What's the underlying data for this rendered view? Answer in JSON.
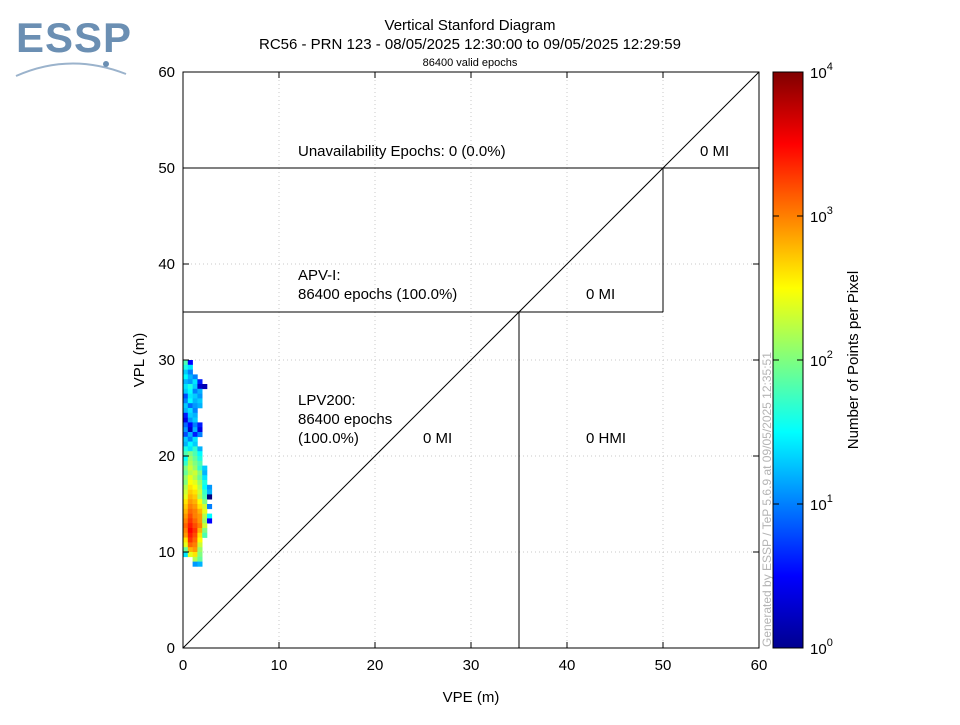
{
  "logo": {
    "text": "ESSP"
  },
  "header": {
    "title": "Vertical Stanford Diagram",
    "subtitle": "RC56 - PRN 123 - 08/05/2025 12:30:00 to 09/05/2025 12:29:59",
    "epochs_line": "86400 valid epochs"
  },
  "watermark": "Generated by ESSP / TeP 5.6.9 at 09/05/2025 12:35:51",
  "chart_data": {
    "type": "heatmap",
    "title": "Vertical Stanford Diagram",
    "xlabel": "VPE (m)",
    "ylabel": "VPL (m)",
    "xlim": [
      0,
      60
    ],
    "ylim": [
      0,
      60
    ],
    "x_ticks": [
      "0",
      "10",
      "20",
      "30",
      "40",
      "50",
      "60"
    ],
    "y_ticks": [
      "0",
      "10",
      "20",
      "30",
      "40",
      "50",
      "60"
    ],
    "grid": true,
    "cell_size_m": 0.5,
    "colorbar": {
      "label": "Number of Points per Pixel",
      "scale": "log",
      "range": [
        1,
        10000
      ],
      "ticks": [
        {
          "base": "10",
          "exp": "0"
        },
        {
          "base": "10",
          "exp": "1"
        },
        {
          "base": "10",
          "exp": "2"
        },
        {
          "base": "10",
          "exp": "3"
        },
        {
          "base": "10",
          "exp": "4"
        }
      ]
    },
    "alert_limits": [
      {
        "name": "APV-I",
        "val": 50,
        "hal": 35
      },
      {
        "name": "LPV200",
        "val": 35
      }
    ],
    "annotations": {
      "unavailability": "Unavailability Epochs: 0 (0.0%)",
      "mi_top": "0 MI",
      "apv_title": "APV-I:",
      "apv_epochs": "86400 epochs (100.0%)",
      "mi_apv": "0 MI",
      "lpv_title": "LPV200:",
      "lpv_epochs": "86400 epochs",
      "lpv_pct": "(100.0%)",
      "mi_lpv": "0 MI",
      "hmi": "0 HMI"
    },
    "cells": [
      [
        0.0,
        29.5,
        1.8
      ],
      [
        0.5,
        29.5,
        0.5
      ],
      [
        0.0,
        29.0,
        1.6
      ],
      [
        0.5,
        29.0,
        1.4
      ],
      [
        0.0,
        28.5,
        1.3
      ],
      [
        0.5,
        28.5,
        1.0
      ],
      [
        0.0,
        28.0,
        1.5
      ],
      [
        0.5,
        28.0,
        1.2
      ],
      [
        1.0,
        28.0,
        1.0
      ],
      [
        0.0,
        27.5,
        1.2
      ],
      [
        0.5,
        27.5,
        1.1
      ],
      [
        1.0,
        27.5,
        1.4
      ],
      [
        1.5,
        27.5,
        0.6
      ],
      [
        0.0,
        27.0,
        1.4
      ],
      [
        0.5,
        27.0,
        1.6
      ],
      [
        1.0,
        27.0,
        1.3
      ],
      [
        1.5,
        27.0,
        0.3
      ],
      [
        2.0,
        27.0,
        0.2
      ],
      [
        0.0,
        26.5,
        1.3
      ],
      [
        0.5,
        26.5,
        1.5
      ],
      [
        1.0,
        26.5,
        1.0
      ],
      [
        1.5,
        26.5,
        1.2
      ],
      [
        0.0,
        26.0,
        0.8
      ],
      [
        0.5,
        26.0,
        1.4
      ],
      [
        1.0,
        26.0,
        1.3
      ],
      [
        1.5,
        26.0,
        1.1
      ],
      [
        0.0,
        25.5,
        1.0
      ],
      [
        0.5,
        25.5,
        1.5
      ],
      [
        1.0,
        25.5,
        1.2
      ],
      [
        1.5,
        25.5,
        1.3
      ],
      [
        0.0,
        25.0,
        1.3
      ],
      [
        0.5,
        25.0,
        0.9
      ],
      [
        1.0,
        25.0,
        1.1
      ],
      [
        1.5,
        25.0,
        1.2
      ],
      [
        0.0,
        24.5,
        1.2
      ],
      [
        0.5,
        24.5,
        1.4
      ],
      [
        1.0,
        24.5,
        1.0
      ],
      [
        0.0,
        24.0,
        0.6
      ],
      [
        0.5,
        24.0,
        1.3
      ],
      [
        1.0,
        24.0,
        1.2
      ],
      [
        0.0,
        23.5,
        0.4
      ],
      [
        0.5,
        23.5,
        1.1
      ],
      [
        1.0,
        23.5,
        1.3
      ],
      [
        0.0,
        23.0,
        0.9
      ],
      [
        0.5,
        23.0,
        0.5
      ],
      [
        1.0,
        23.0,
        1.0
      ],
      [
        1.5,
        23.0,
        0.6
      ],
      [
        0.0,
        22.5,
        1.1
      ],
      [
        0.5,
        22.5,
        0.3
      ],
      [
        1.0,
        22.5,
        1.2
      ],
      [
        1.5,
        22.5,
        0.4
      ],
      [
        0.0,
        22.0,
        0.8
      ],
      [
        0.5,
        22.0,
        1.2
      ],
      [
        1.0,
        22.0,
        0.6
      ],
      [
        1.5,
        22.0,
        1.0
      ],
      [
        0.0,
        21.5,
        1.3
      ],
      [
        0.5,
        21.5,
        1.0
      ],
      [
        1.0,
        21.5,
        1.4
      ],
      [
        0.0,
        21.0,
        1.2
      ],
      [
        0.5,
        21.0,
        1.5
      ],
      [
        1.0,
        21.0,
        1.3
      ],
      [
        0.0,
        20.5,
        1.6
      ],
      [
        0.5,
        20.5,
        1.4
      ],
      [
        1.0,
        20.5,
        1.7
      ],
      [
        1.5,
        20.5,
        1.2
      ],
      [
        0.0,
        20.0,
        1.8
      ],
      [
        0.5,
        20.0,
        2.0
      ],
      [
        1.0,
        20.0,
        1.8
      ],
      [
        1.5,
        20.0,
        1.5
      ],
      [
        0.0,
        19.5,
        1.5
      ],
      [
        0.5,
        19.5,
        2.1
      ],
      [
        1.0,
        19.5,
        1.9
      ],
      [
        1.5,
        19.5,
        1.6
      ],
      [
        0.0,
        19.0,
        1.7
      ],
      [
        0.5,
        19.0,
        2.2
      ],
      [
        1.0,
        19.0,
        2.0
      ],
      [
        1.5,
        19.0,
        1.8
      ],
      [
        0.0,
        18.5,
        2.0
      ],
      [
        0.5,
        18.5,
        2.3
      ],
      [
        1.0,
        18.5,
        2.1
      ],
      [
        1.5,
        18.5,
        1.7
      ],
      [
        2.0,
        18.5,
        1.3
      ],
      [
        0.0,
        18.0,
        1.9
      ],
      [
        0.5,
        18.0,
        2.2
      ],
      [
        1.0,
        18.0,
        2.3
      ],
      [
        1.5,
        18.0,
        2.0
      ],
      [
        2.0,
        18.0,
        1.2
      ],
      [
        0.0,
        17.5,
        2.1
      ],
      [
        0.5,
        17.5,
        2.4
      ],
      [
        1.0,
        17.5,
        2.2
      ],
      [
        1.5,
        17.5,
        1.9
      ],
      [
        2.0,
        17.5,
        1.4
      ],
      [
        0.0,
        17.0,
        2.0
      ],
      [
        0.5,
        17.0,
        2.5
      ],
      [
        1.0,
        17.0,
        2.4
      ],
      [
        1.5,
        17.0,
        2.1
      ],
      [
        2.0,
        17.0,
        1.6
      ],
      [
        0.0,
        16.5,
        2.2
      ],
      [
        0.5,
        16.5,
        2.6
      ],
      [
        1.0,
        16.5,
        2.5
      ],
      [
        1.5,
        16.5,
        2.2
      ],
      [
        2.0,
        16.5,
        1.5
      ],
      [
        2.5,
        16.5,
        1.1
      ],
      [
        0.0,
        16.0,
        2.3
      ],
      [
        0.5,
        16.0,
        2.7
      ],
      [
        1.0,
        16.0,
        2.6
      ],
      [
        1.5,
        16.0,
        2.3
      ],
      [
        2.0,
        16.0,
        1.7
      ],
      [
        2.5,
        16.0,
        1.2
      ],
      [
        0.0,
        15.5,
        2.4
      ],
      [
        0.5,
        15.5,
        2.8
      ],
      [
        1.0,
        15.5,
        2.7
      ],
      [
        1.5,
        15.5,
        2.2
      ],
      [
        2.0,
        15.5,
        1.8
      ],
      [
        2.5,
        15.5,
        0.0
      ],
      [
        0.0,
        15.0,
        2.6
      ],
      [
        0.5,
        15.0,
        2.9
      ],
      [
        1.0,
        15.0,
        2.8
      ],
      [
        1.5,
        15.0,
        2.5
      ],
      [
        2.0,
        15.0,
        2.0
      ],
      [
        0.0,
        14.5,
        2.7
      ],
      [
        0.5,
        14.5,
        3.0
      ],
      [
        1.0,
        14.5,
        2.9
      ],
      [
        1.5,
        14.5,
        2.6
      ],
      [
        2.0,
        14.5,
        2.3
      ],
      [
        2.5,
        14.5,
        1.0
      ],
      [
        0.0,
        14.0,
        2.8
      ],
      [
        0.5,
        14.0,
        3.1
      ],
      [
        1.0,
        14.0,
        3.0
      ],
      [
        1.5,
        14.0,
        2.8
      ],
      [
        2.0,
        14.0,
        2.4
      ],
      [
        0.0,
        13.5,
        2.9
      ],
      [
        0.5,
        13.5,
        3.2
      ],
      [
        1.0,
        13.5,
        3.0
      ],
      [
        1.5,
        13.5,
        2.9
      ],
      [
        2.0,
        13.5,
        2.2
      ],
      [
        2.5,
        13.5,
        1.5
      ],
      [
        0.0,
        13.0,
        3.0
      ],
      [
        0.5,
        13.0,
        3.3
      ],
      [
        1.0,
        13.0,
        3.1
      ],
      [
        1.5,
        13.0,
        2.9
      ],
      [
        2.0,
        13.0,
        2.1
      ],
      [
        2.5,
        13.0,
        0.5
      ],
      [
        0.0,
        12.5,
        3.1
      ],
      [
        0.5,
        12.5,
        3.4
      ],
      [
        1.0,
        12.5,
        3.2
      ],
      [
        1.5,
        12.5,
        3.0
      ],
      [
        2.0,
        12.5,
        2.3
      ],
      [
        0.0,
        12.0,
        3.0
      ],
      [
        0.5,
        12.0,
        3.5
      ],
      [
        1.0,
        12.0,
        3.3
      ],
      [
        1.5,
        12.0,
        2.8
      ],
      [
        2.0,
        12.0,
        2.0
      ],
      [
        0.0,
        11.5,
        2.9
      ],
      [
        0.5,
        11.5,
        3.4
      ],
      [
        1.0,
        11.5,
        3.2
      ],
      [
        1.5,
        11.5,
        2.6
      ],
      [
        2.0,
        11.5,
        1.8
      ],
      [
        0.0,
        11.0,
        2.6
      ],
      [
        0.5,
        11.0,
        3.3
      ],
      [
        1.0,
        11.0,
        3.1
      ],
      [
        1.5,
        11.0,
        2.5
      ],
      [
        0.0,
        10.5,
        2.4
      ],
      [
        0.5,
        10.5,
        3.1
      ],
      [
        1.0,
        10.5,
        3.0
      ],
      [
        1.5,
        10.5,
        2.3
      ],
      [
        0.0,
        10.0,
        1.9
      ],
      [
        0.5,
        10.0,
        2.8
      ],
      [
        1.0,
        10.0,
        2.9
      ],
      [
        1.5,
        10.0,
        2.1
      ],
      [
        0.0,
        9.5,
        1.4
      ],
      [
        0.5,
        9.5,
        2.4
      ],
      [
        1.0,
        9.5,
        2.6
      ],
      [
        1.5,
        9.5,
        2.0
      ],
      [
        1.0,
        9.0,
        2.2
      ],
      [
        1.5,
        9.0,
        1.9
      ],
      [
        1.0,
        8.5,
        1.1
      ],
      [
        1.5,
        8.5,
        1.2
      ]
    ]
  }
}
